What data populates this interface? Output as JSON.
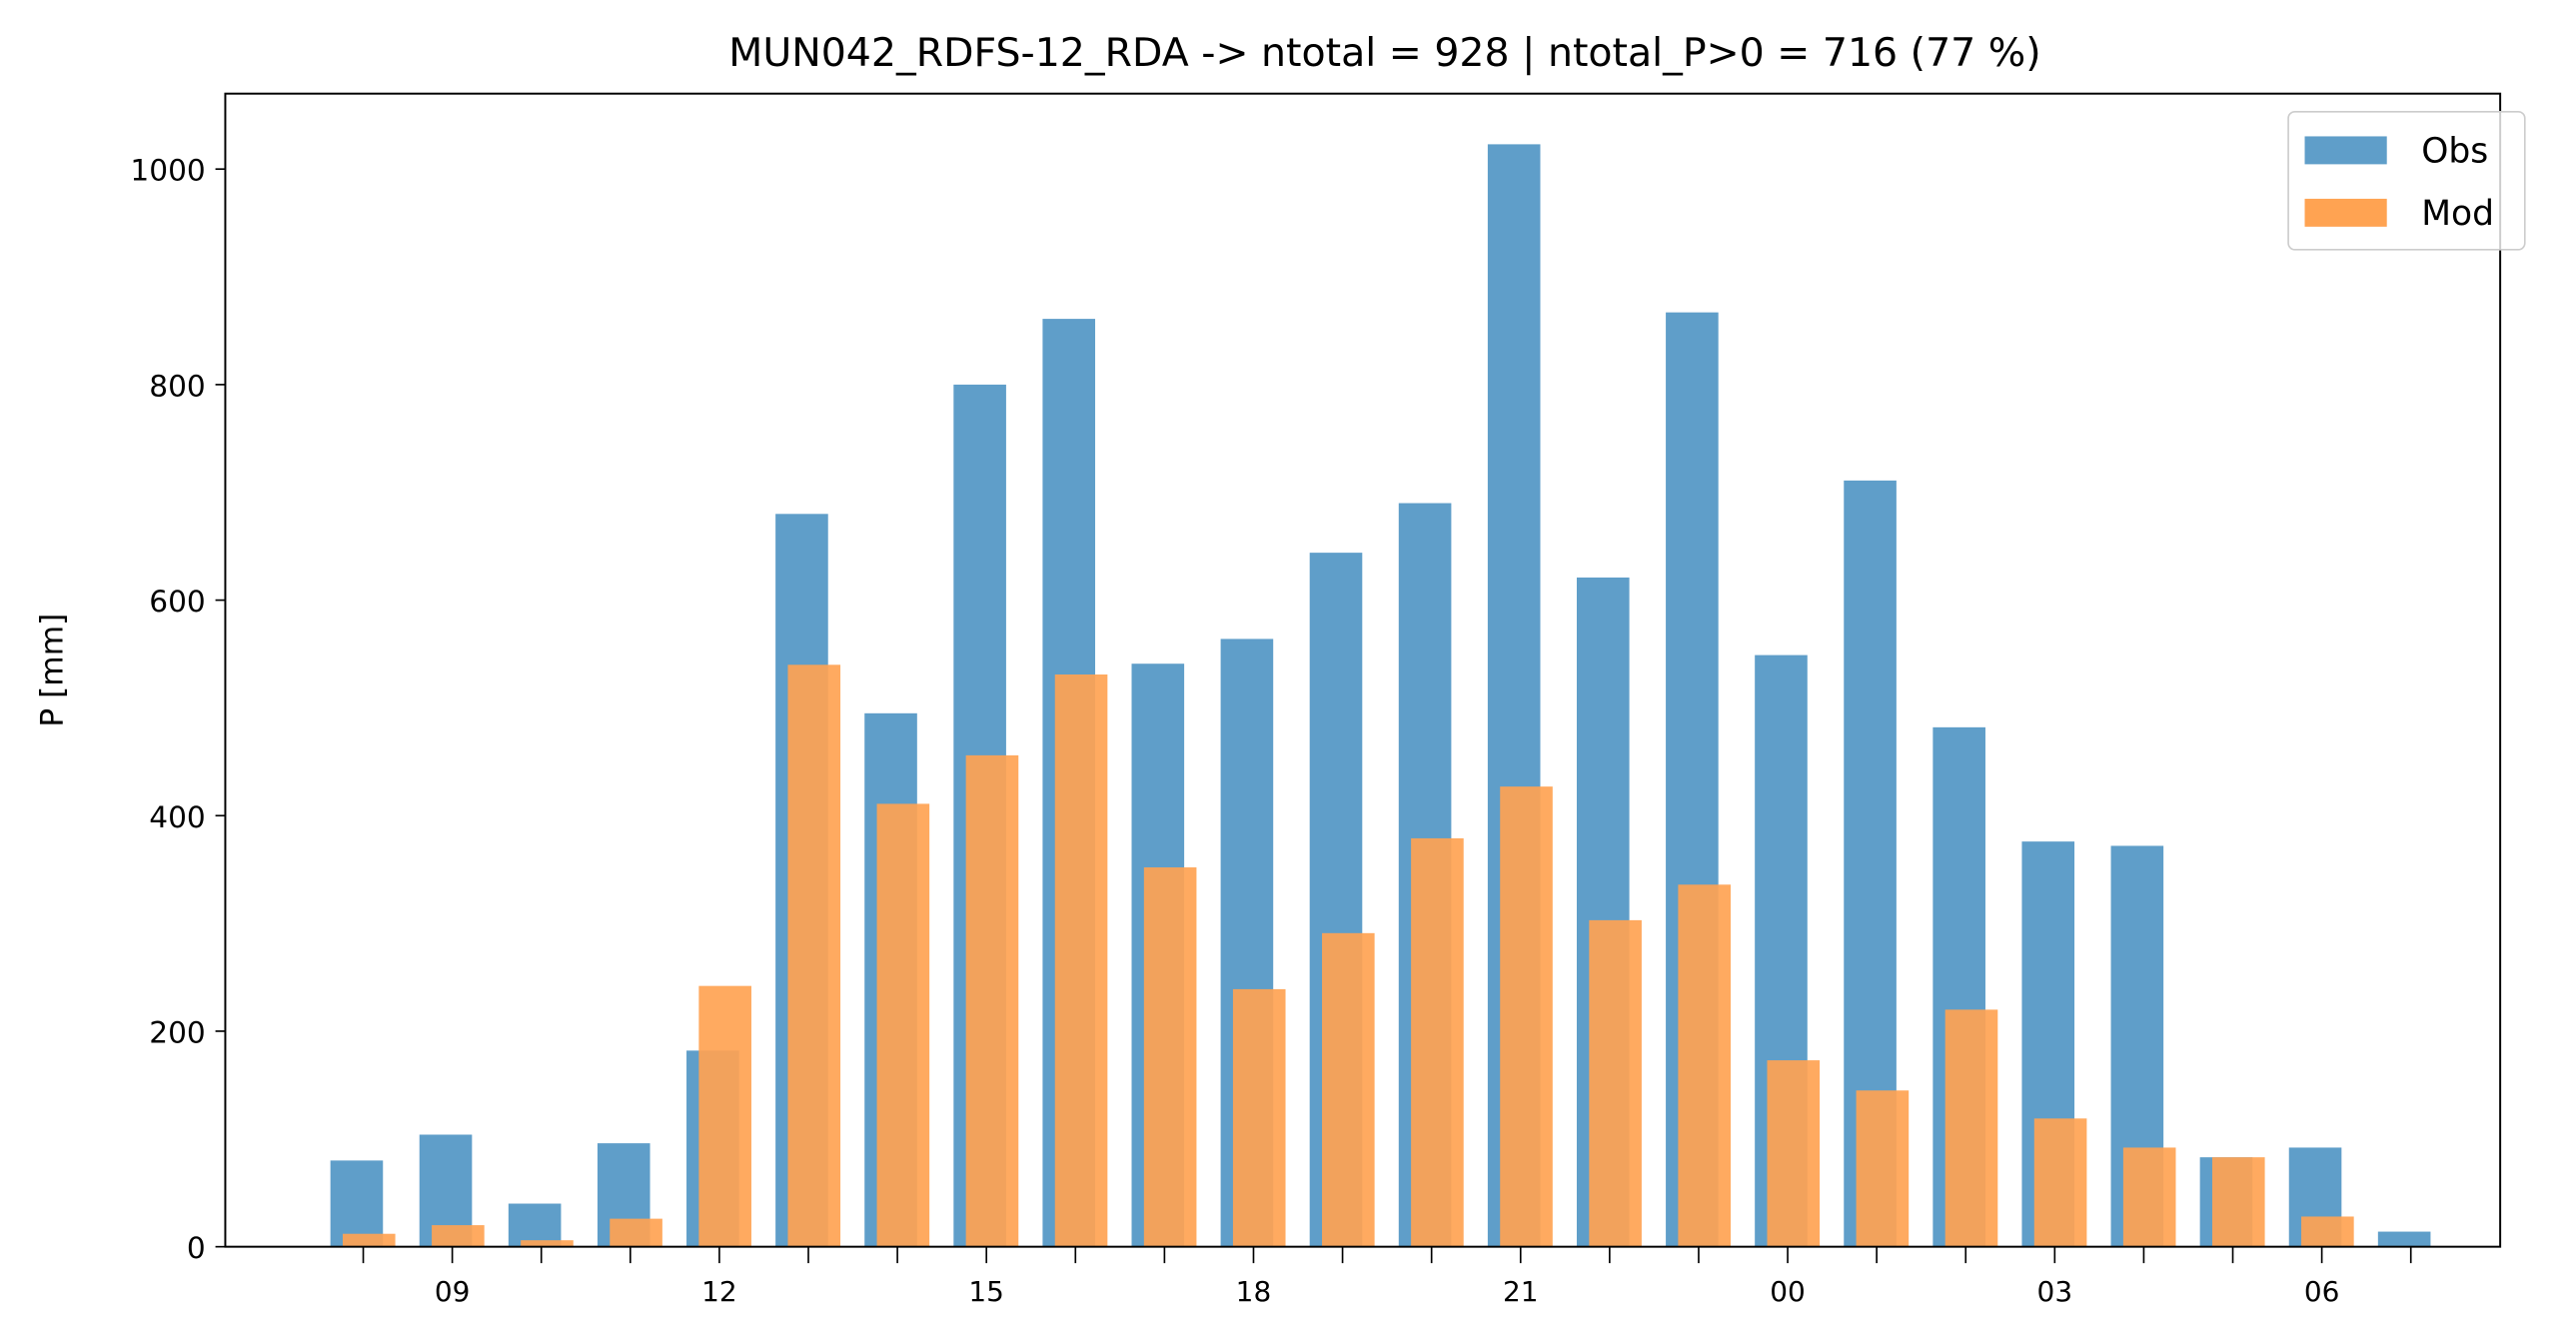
{
  "chart_data": {
    "type": "bar",
    "title": "MUN042_RDFS-12_RDA -> ntotal = 928 | ntotal_P>0 = 716 (77 %)",
    "xlabel": "",
    "ylabel": "P [mm]",
    "ylim": [
      0,
      1070
    ],
    "yticks": [
      0,
      200,
      400,
      600,
      800,
      1000
    ],
    "hours": [
      "08",
      "09",
      "10",
      "11",
      "12",
      "13",
      "14",
      "15",
      "16",
      "17",
      "18",
      "19",
      "20",
      "21",
      "22",
      "23",
      "00",
      "01",
      "02",
      "03",
      "04",
      "05",
      "06",
      "07"
    ],
    "xtick_labels": [
      {
        "hour_index": 1,
        "label": "09"
      },
      {
        "hour_index": 4,
        "label": "12"
      },
      {
        "hour_index": 7,
        "label": "15"
      },
      {
        "hour_index": 10,
        "label": "18"
      },
      {
        "hour_index": 13,
        "label": "21"
      },
      {
        "hour_index": 16,
        "label": "00"
      },
      {
        "hour_index": 19,
        "label": "03"
      },
      {
        "hour_index": 22,
        "label": "06"
      }
    ],
    "grid": false,
    "legend_position": "top-right",
    "series": [
      {
        "name": "Obs",
        "color": "#5f9ec9",
        "values": [
          80,
          104,
          40,
          96,
          182,
          680,
          495,
          800,
          861,
          541,
          564,
          644,
          690,
          1023,
          621,
          867,
          549,
          711,
          482,
          376,
          372,
          83,
          92,
          14
        ]
      },
      {
        "name": "Mod",
        "color": "#ffa352",
        "values": [
          12,
          20,
          6,
          26,
          242,
          540,
          411,
          456,
          531,
          352,
          239,
          291,
          379,
          427,
          303,
          336,
          173,
          145,
          220,
          119,
          92,
          83,
          28,
          0
        ]
      }
    ]
  }
}
